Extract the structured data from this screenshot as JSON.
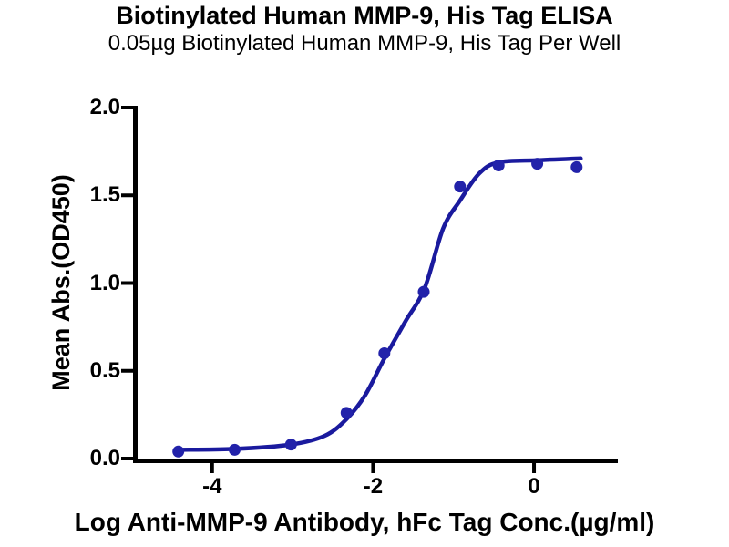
{
  "header": {
    "title": "Biotinylated Human MMP-9, His Tag ELISA",
    "subtitle": "0.05µg Biotinylated Human MMP-9, His Tag Per Well"
  },
  "chart_data": {
    "type": "scatter",
    "title": "Biotinylated Human MMP-9, His Tag ELISA",
    "subtitle": "0.05µg Biotinylated Human MMP-9, His Tag Per Well",
    "xlabel": "Log Anti-MMP-9 Antibody, hFc Tag Conc.(µg/ml)",
    "ylabel": "Mean Abs.(OD450)",
    "xlim": [
      -4.96,
      1.03
    ],
    "ylim": [
      0,
      2
    ],
    "x_ticks": [
      -4,
      -2,
      0
    ],
    "x_tick_labels": [
      "-4",
      "-2",
      "0"
    ],
    "y_ticks": [
      0,
      0.5,
      1,
      1.5,
      2
    ],
    "y_tick_labels": [
      "0.0",
      "0.5",
      "1.0",
      "1.5",
      "2.0"
    ],
    "grid": false,
    "legend_position": "none",
    "series": [
      {
        "name": "Anti-MMP-9 Antibody, hFc Tag",
        "x": [
          -4.42,
          -3.72,
          -3.02,
          -2.33,
          -1.86,
          -1.37,
          -0.92,
          -0.44,
          0.04,
          0.53
        ],
        "y": [
          0.04,
          0.05,
          0.08,
          0.26,
          0.6,
          0.95,
          1.55,
          1.67,
          1.68,
          1.66
        ]
      }
    ],
    "fit_curve": {
      "x": [
        -4.42,
        -3.72,
        -3.02,
        -2.6,
        -2.33,
        -2.1,
        -1.86,
        -1.6,
        -1.36,
        -1.13,
        -0.92,
        -0.68,
        -0.44,
        0.05,
        0.58
      ],
      "y": [
        0.05,
        0.055,
        0.08,
        0.13,
        0.225,
        0.36,
        0.57,
        0.78,
        0.97,
        1.31,
        1.47,
        1.625,
        1.688,
        1.7,
        1.71
      ]
    },
    "colors": {
      "marker": "#2222aa",
      "line": "#1a1a9e",
      "axis": "#000000",
      "text": "#000000"
    },
    "marker_diameter": 13,
    "line_width": 4.5
  }
}
